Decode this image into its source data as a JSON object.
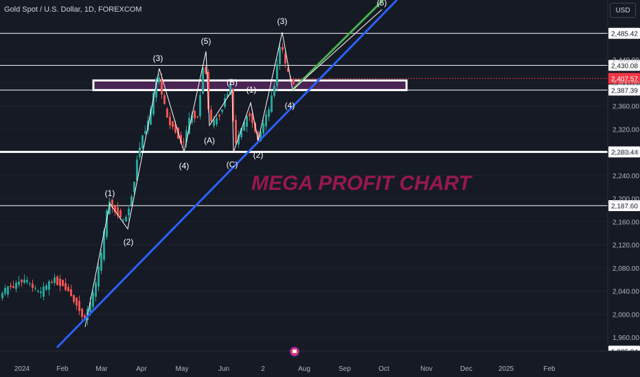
{
  "title": "Gold Spot / U.S. Dollar, 1D, FOREXCOM",
  "currency_label": "USD",
  "watermark": "MEGA PROFIT CHART",
  "chart_data": {
    "type": "candlestick",
    "y_ticks": [
      1960,
      2000,
      2040,
      2080,
      2120,
      2160,
      2200,
      2240,
      2280,
      2320,
      2360,
      2400,
      2440
    ],
    "ylim": [
      1935.84,
      2520
    ],
    "x_labels": [
      "2024",
      "Feb",
      "Mar",
      "Apr",
      "May",
      "Jun",
      "2",
      "Aug",
      "Sep",
      "Oct",
      "Nov",
      "Dec",
      "2025",
      "Feb"
    ],
    "price_levels": [
      {
        "value": 2485.42,
        "label": "2,485.42"
      },
      {
        "value": 2430.08,
        "label": "2,430.08"
      },
      {
        "value": 2387.39,
        "label": "2,387.39"
      },
      {
        "value": 2280.44,
        "label": "2,280.44",
        "style": "thick"
      },
      {
        "value": 2187.6,
        "label": "2,187.60"
      },
      {
        "value": 1935.84,
        "label": "1,935.84"
      }
    ],
    "current_price": {
      "value": 2407.57,
      "label": "2,407.57",
      "color": "#f23645"
    },
    "zone": {
      "from": 2387.39,
      "to": 2404,
      "start": "Jan 2024",
      "end": "Oct 2024"
    },
    "wave_labels": [
      "(1)",
      "(2)",
      "(3)",
      "(4)",
      "(5)",
      "(A)",
      "(B)",
      "(C)",
      "(1)",
      "(2)",
      "(3)",
      "(4)",
      "(5)"
    ],
    "colors": {
      "background": "#161a25",
      "up": "#26a69a",
      "down": "#ef5350",
      "trendline": "#2962ff",
      "projection": "#4caf50",
      "watermark": "#c2185b"
    }
  }
}
